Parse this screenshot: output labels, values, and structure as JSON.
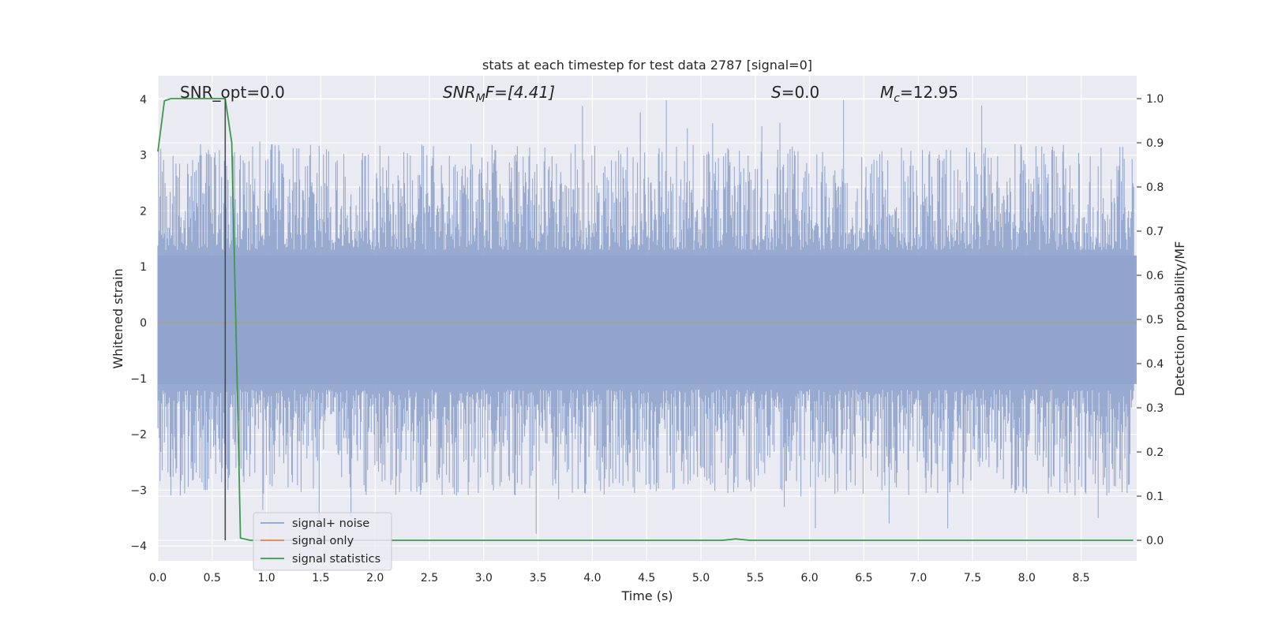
{
  "chart_data": {
    "type": "line",
    "title": "stats at each timestep for test data 2787 [signal=0]",
    "xlabel": "Time (s)",
    "ylabel": "Whitened strain",
    "y2label": "Detection probability/MF",
    "xlim": [
      0.0,
      9.0
    ],
    "ylim": [
      -4.4,
      4.4
    ],
    "y2lim": [
      -0.05,
      1.05
    ],
    "x_ticks": [
      "0.0",
      "0.5",
      "1.0",
      "1.5",
      "2.0",
      "2.5",
      "3.0",
      "3.5",
      "4.0",
      "4.5",
      "5.0",
      "5.5",
      "6.0",
      "6.5",
      "7.0",
      "7.5",
      "8.0",
      "8.5"
    ],
    "y_ticks": [
      "4",
      "3",
      "2",
      "1",
      "0",
      "−1",
      "−2",
      "−3",
      "−4"
    ],
    "y2_ticks": [
      "1.0",
      "0.9",
      "0.8",
      "0.7",
      "0.6",
      "0.5",
      "0.4",
      "0.3",
      "0.2",
      "0.1",
      "0.0"
    ],
    "grid": true,
    "legend_position": "lower-left",
    "annotations": {
      "snr_opt": "SNR_opt=0.0",
      "snr_mf_sym": "SNR",
      "snr_mf_sub": "M",
      "snr_mf_rest": "F=[4.41]",
      "s_sym": "S",
      "s_rest": "=0.0",
      "mc_sym": "M",
      "mc_sub": "c",
      "mc_rest": "=12.95"
    },
    "marker_time": 0.62,
    "series": [
      {
        "name": "signal+ noise",
        "color": "#8fa3cc",
        "description_range": [
          -3.9,
          4.0
        ]
      },
      {
        "name": "signal only",
        "color": "#dd8452",
        "values": [
          0.0,
          0.0
        ]
      },
      {
        "name": "signal statistics",
        "color": "#3b9a4c",
        "axis": "right",
        "points": [
          [
            0.0,
            0.88
          ],
          [
            0.06,
            0.995
          ],
          [
            0.12,
            1.0
          ],
          [
            0.3,
            1.0
          ],
          [
            0.45,
            1.0
          ],
          [
            0.62,
            1.0
          ],
          [
            0.68,
            0.9
          ],
          [
            0.74,
            0.25
          ],
          [
            0.76,
            0.005
          ],
          [
            0.85,
            0.0
          ],
          [
            2.0,
            0.0
          ],
          [
            4.0,
            0.0
          ],
          [
            5.0,
            0.0
          ],
          [
            5.2,
            0.0
          ],
          [
            5.32,
            0.003
          ],
          [
            5.45,
            0.0
          ],
          [
            6.0,
            0.0
          ],
          [
            7.0,
            0.0
          ],
          [
            8.0,
            0.0
          ],
          [
            8.98,
            0.0
          ]
        ]
      }
    ]
  }
}
